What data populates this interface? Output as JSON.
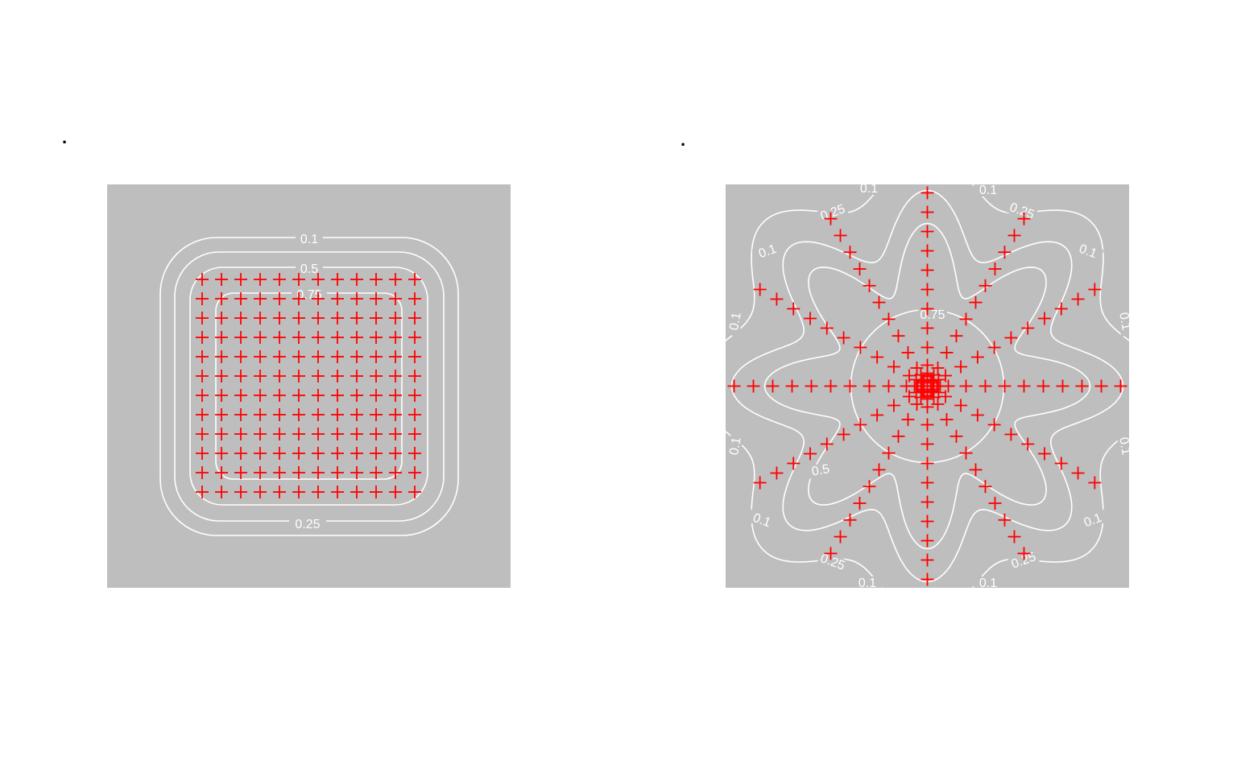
{
  "chart_data": [
    {
      "type": "contour",
      "title": ".",
      "background_color": "#bebebe",
      "contour_color": "#ffffff",
      "point_color": "#ff0000",
      "point_marker": "+",
      "contour_levels": [
        "0.1",
        "0.5",
        "0.75",
        "0.25"
      ],
      "grid_points": {
        "nx": 12,
        "ny": 12,
        "x_range": [
          -1,
          1
        ],
        "y_range": [
          -1,
          1
        ]
      }
    },
    {
      "type": "contour",
      "title": ".",
      "background_color": "#bebebe",
      "contour_color": "#ffffff",
      "point_color": "#ff0000",
      "point_marker": "+",
      "contour_levels": [
        "0.1",
        "0.25",
        "0.5",
        "0.75"
      ],
      "rays": {
        "count": 12,
        "points_per_ray": 10,
        "spacing": "increasing toward center"
      }
    }
  ]
}
